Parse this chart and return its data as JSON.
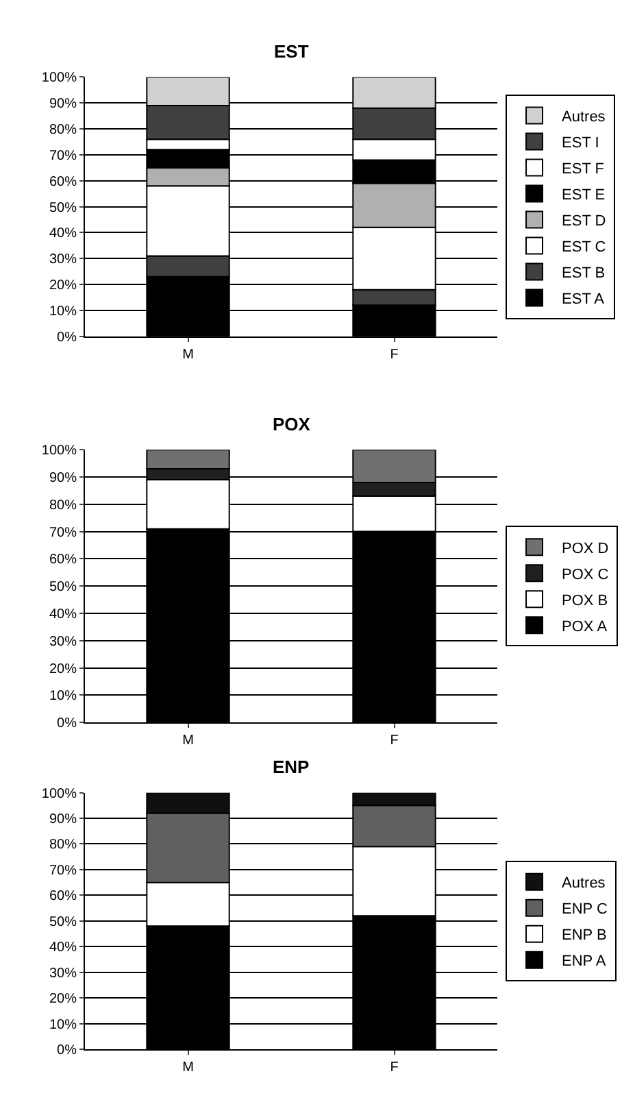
{
  "chart_data": [
    {
      "type": "bar",
      "title": "EST",
      "categories": [
        "M",
        "F"
      ],
      "stacked": true,
      "ylim": [
        0,
        100
      ],
      "yticks": [
        {
          "value": 0,
          "label": "0%"
        },
        {
          "value": 10,
          "label": "10%"
        },
        {
          "value": 20,
          "label": "20%"
        },
        {
          "value": 30,
          "label": "30%"
        },
        {
          "value": 40,
          "label": "40%"
        },
        {
          "value": 50,
          "label": "50%"
        },
        {
          "value": 60,
          "label": "60%"
        },
        {
          "value": 70,
          "label": "70%"
        },
        {
          "value": 80,
          "label": "80%"
        },
        {
          "value": 90,
          "label": "90%"
        },
        {
          "value": 100,
          "label": "100%"
        }
      ],
      "grid": "y",
      "legend": "right",
      "series": [
        {
          "name": "EST A",
          "color": "#000000",
          "values": [
            23,
            12
          ]
        },
        {
          "name": "EST B",
          "color": "#404040",
          "values": [
            8,
            6
          ]
        },
        {
          "name": "EST C",
          "color": "#ffffff",
          "values": [
            27,
            24
          ]
        },
        {
          "name": "EST D",
          "color": "#b0b0b0",
          "values": [
            7,
            17
          ]
        },
        {
          "name": "EST E",
          "color": "#000000",
          "values": [
            7,
            9
          ]
        },
        {
          "name": "EST F",
          "color": "#ffffff",
          "values": [
            4,
            8
          ]
        },
        {
          "name": "EST I",
          "color": "#404040",
          "values": [
            13,
            12
          ]
        },
        {
          "name": "Autres",
          "color": "#d0d0d0",
          "values": [
            11,
            12
          ]
        }
      ]
    },
    {
      "type": "bar",
      "title": "POX",
      "categories": [
        "M",
        "F"
      ],
      "stacked": true,
      "ylim": [
        0,
        100
      ],
      "yticks": [
        {
          "value": 0,
          "label": "0%"
        },
        {
          "value": 10,
          "label": "10%"
        },
        {
          "value": 20,
          "label": "20%"
        },
        {
          "value": 30,
          "label": "30%"
        },
        {
          "value": 40,
          "label": "40%"
        },
        {
          "value": 50,
          "label": "50%"
        },
        {
          "value": 60,
          "label": "60%"
        },
        {
          "value": 70,
          "label": "70%"
        },
        {
          "value": 80,
          "label": "80%"
        },
        {
          "value": 90,
          "label": "90%"
        },
        {
          "value": 100,
          "label": "100%"
        }
      ],
      "grid": "y",
      "legend": "right",
      "series": [
        {
          "name": "POX A",
          "color": "#000000",
          "values": [
            71,
            70
          ]
        },
        {
          "name": "POX B",
          "color": "#ffffff",
          "values": [
            18,
            13
          ]
        },
        {
          "name": "POX C",
          "color": "#202020",
          "values": [
            4,
            5
          ]
        },
        {
          "name": "POX D",
          "color": "#707070",
          "values": [
            7,
            12
          ]
        }
      ]
    },
    {
      "type": "bar",
      "title": "ENP",
      "categories": [
        "M",
        "F"
      ],
      "stacked": true,
      "ylim": [
        0,
        100
      ],
      "yticks": [
        {
          "value": 0,
          "label": "0%"
        },
        {
          "value": 10,
          "label": "10%"
        },
        {
          "value": 20,
          "label": "20%"
        },
        {
          "value": 30,
          "label": "30%"
        },
        {
          "value": 40,
          "label": "40%"
        },
        {
          "value": 50,
          "label": "50%"
        },
        {
          "value": 60,
          "label": "60%"
        },
        {
          "value": 70,
          "label": "70%"
        },
        {
          "value": 80,
          "label": "80%"
        },
        {
          "value": 90,
          "label": "90%"
        },
        {
          "value": 100,
          "label": "100%"
        }
      ],
      "grid": "y",
      "legend": "right",
      "series": [
        {
          "name": "ENP A",
          "color": "#000000",
          "values": [
            48,
            52
          ]
        },
        {
          "name": "ENP B",
          "color": "#ffffff",
          "values": [
            17,
            27
          ]
        },
        {
          "name": "ENP C",
          "color": "#606060",
          "values": [
            27,
            16
          ]
        },
        {
          "name": "Autres",
          "color": "#101010",
          "values": [
            8,
            5
          ]
        }
      ]
    }
  ]
}
